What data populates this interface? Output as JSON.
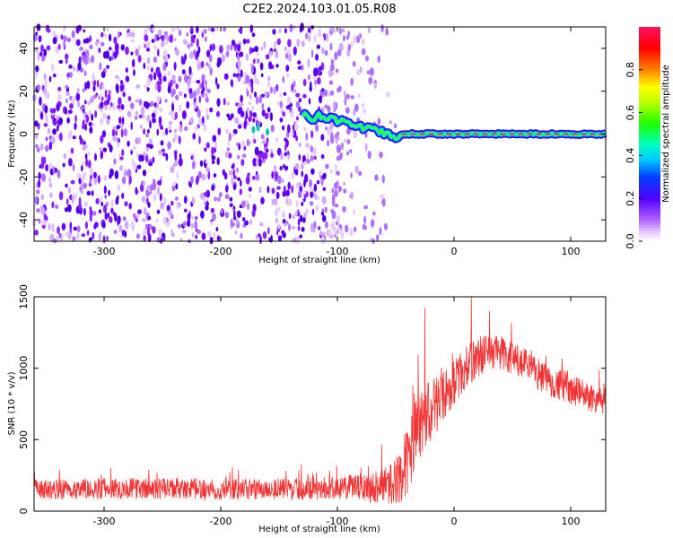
{
  "title": "C2E2.2024.103.01.05.R08",
  "chart_data": [
    {
      "type": "heatmap",
      "xlabel": "Height of straight line (km)",
      "ylabel": "Frequency (Hz)",
      "xlim": [
        -360,
        130
      ],
      "ylim": [
        -50,
        50
      ],
      "x_ticks": [
        -300,
        -200,
        -100,
        0,
        100
      ],
      "y_ticks": [
        -40,
        -20,
        0,
        20,
        40
      ],
      "colorbar": {
        "label": "Normalized spectral amplitude",
        "range": [
          0,
          1
        ],
        "ticks": [
          0.0,
          0.2,
          0.4,
          0.6,
          0.8
        ],
        "colormap": "hsv-rainbow (white → violet → blue → cyan → green → yellow → red → pink)"
      },
      "features": [
        {
          "region": "x -360 to -60 km",
          "description": "broadband noise across all frequencies"
        },
        {
          "region": "x -130 to -45 km",
          "description": "signal line near 0 to 10 Hz descending toward 0 Hz"
        },
        {
          "region": "x -45 to 130 km",
          "description": "narrow signal line at 0 Hz"
        }
      ]
    },
    {
      "type": "line",
      "xlabel": "Height of straight line (km)",
      "ylabel": "SNR (10 * v/v)",
      "xlim": [
        -360,
        130
      ],
      "ylim": [
        0,
        1500
      ],
      "x_ticks": [
        -300,
        -200,
        -100,
        0,
        100
      ],
      "y_ticks": [
        0,
        500,
        1000,
        1500
      ],
      "color": "#f03333",
      "envelope": {
        "x": [
          -360,
          -300,
          -200,
          -100,
          -70,
          -50,
          -40,
          -30,
          -25,
          -20,
          -10,
          0,
          10,
          20,
          30,
          40,
          60,
          80,
          100,
          130
        ],
        "y_mid": [
          150,
          160,
          150,
          160,
          170,
          200,
          350,
          550,
          650,
          700,
          800,
          900,
          1000,
          1080,
          1120,
          1110,
          1020,
          920,
          850,
          760
        ],
        "y_spread": [
          70,
          75,
          75,
          80,
          110,
          160,
          250,
          300,
          250,
          220,
          180,
          160,
          150,
          150,
          140,
          130,
          120,
          110,
          110,
          100
        ],
        "peaks": [
          {
            "x": 15,
            "y": 1500
          },
          {
            "x": -25,
            "y": 1420
          }
        ]
      }
    }
  ]
}
